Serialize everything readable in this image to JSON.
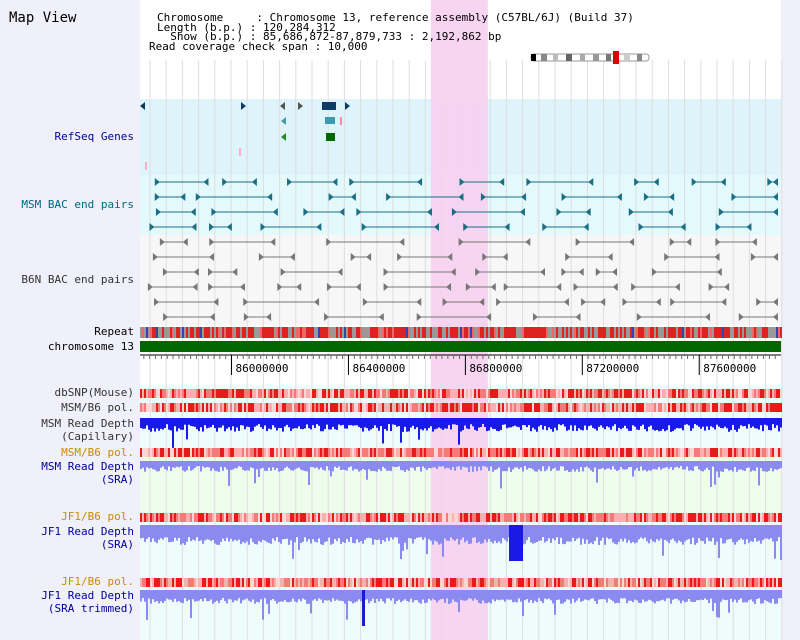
{
  "title": "Map View",
  "header": {
    "line1": "Chromosome     : Chromosome 13, reference assembly (C57BL/6J) (Build 37)",
    "line2": "Length (b.p.) : 120,284,312",
    "line3": "  Show (b.p.) : 85,686,872-87,879,733 : 2,192,862 bp",
    "line4": "Read coverage check span : 10,000"
  },
  "tracks": {
    "refseq": "RefSeq Genes",
    "msm_bac": "MSM BAC end pairs",
    "b6n_bac": "B6N BAC end pairs",
    "repeat": "Repeat",
    "chromosome": "chromosome 13",
    "dbsnp": "dbSNP(Mouse)",
    "msm_b6_pol_1": "MSM/B6 pol.",
    "msm_depth_cap_1": "MSM Read Depth",
    "msm_depth_cap_2": "(Capillary)",
    "msm_b6_pol_2": "MSM/B6 pol.",
    "msm_depth_sra_1": "MSM Read Depth",
    "msm_depth_sra_2": "(SRA)",
    "jf1_b6_pol_1": "JF1/B6 pol.",
    "jf1_depth_sra_1": "JF1 Read Depth",
    "jf1_depth_sra_2": "(SRA)",
    "jf1_b6_pol_2": "JF1/B6 pol.",
    "jf1_depth_trim_1": "JF1 Read Depth",
    "jf1_depth_trim_2": "(SRA trimmed)"
  },
  "axis": {
    "tick_labels": [
      "86000000",
      "86400000",
      "86800000",
      "87200000",
      "87600000"
    ],
    "tick_values": [
      86000000,
      86400000,
      86800000,
      87200000,
      87600000
    ],
    "range": [
      85686872,
      87879733
    ]
  },
  "highlight_region": [
    86682000,
    86877000
  ],
  "colors": {
    "refseq_bg": "#dff3fb",
    "msm_bg": "#e3f9fb",
    "b6n_bg": "#f7f7f7",
    "highlight": "#f6d0ef",
    "chromosome": "#006600",
    "depth_dark": "#1a1ae8",
    "depth_light": "#8a8af0",
    "label_blue": "#000099",
    "label_teal": "#006680",
    "label_gray": "#333333",
    "label_orange": "#cc8800"
  }
}
